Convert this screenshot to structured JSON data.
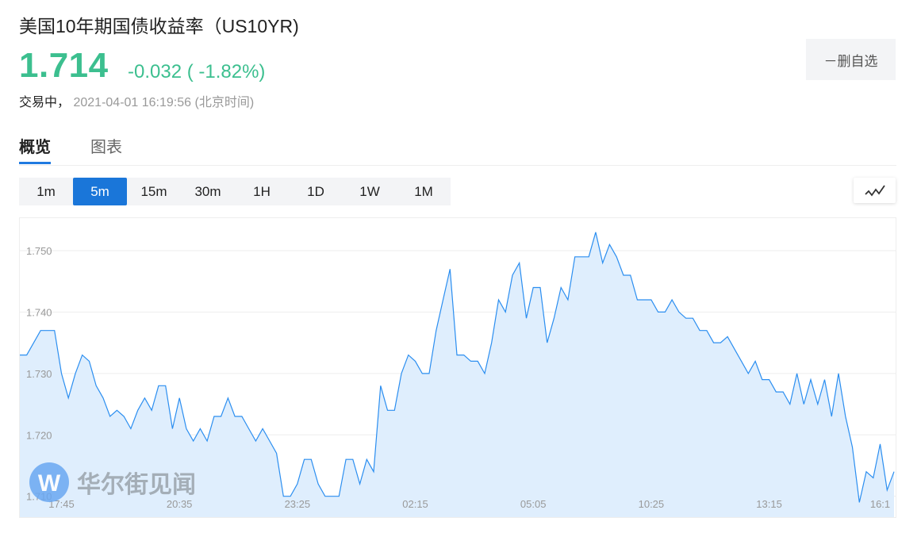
{
  "header": {
    "title": "美国10年期国债收益率（US10YR)",
    "price": "1.714",
    "change": "-0.032 ( -1.82%)",
    "status": "交易中，",
    "datetime": "2021-04-01 16:19:56",
    "timezone": "(北京时间)",
    "favorite_button": "－删自选",
    "up_down_color": "#3cbf8f"
  },
  "tabs": [
    {
      "label": "概览",
      "active": true
    },
    {
      "label": "图表",
      "active": false
    }
  ],
  "periods": [
    {
      "label": "1m",
      "active": false
    },
    {
      "label": "5m",
      "active": true
    },
    {
      "label": "15m",
      "active": false
    },
    {
      "label": "30m",
      "active": false
    },
    {
      "label": "1H",
      "active": false
    },
    {
      "label": "1D",
      "active": false
    },
    {
      "label": "1W",
      "active": false
    },
    {
      "label": "1M",
      "active": false
    }
  ],
  "chart_type_icon": "line-chart-icon",
  "watermark": {
    "logo_text": "华尔街见闻",
    "logo_letter": "W"
  },
  "chart_data": {
    "type": "area",
    "title": "",
    "xlabel": "",
    "ylabel": "",
    "line_color": "#2b8ef0",
    "fill_color": "#dfeefd",
    "grid": true,
    "ylim": [
      1.7066,
      1.7553
    ],
    "y_ticks": [
      {
        "value": 1.75,
        "label": "1.750"
      },
      {
        "value": 1.74,
        "label": "1.740"
      },
      {
        "value": 1.73,
        "label": "1.730"
      },
      {
        "value": 1.72,
        "label": "1.720"
      },
      {
        "value": 1.71,
        "label": "1.710"
      }
    ],
    "x_ticks": [
      {
        "index": 6,
        "label": "17:45"
      },
      {
        "index": 23,
        "label": "20:35"
      },
      {
        "index": 40,
        "label": "23:25"
      },
      {
        "index": 57,
        "label": "02:15"
      },
      {
        "index": 74,
        "label": "05:05"
      },
      {
        "index": 91,
        "label": "10:25"
      },
      {
        "index": 108,
        "label": "13:15"
      },
      {
        "index": 124,
        "label": "16:1"
      }
    ],
    "values": [
      1.733,
      1.733,
      1.735,
      1.737,
      1.737,
      1.737,
      1.73,
      1.726,
      1.73,
      1.733,
      1.732,
      1.728,
      1.726,
      1.723,
      1.724,
      1.723,
      1.721,
      1.724,
      1.726,
      1.724,
      1.728,
      1.728,
      1.721,
      1.726,
      1.721,
      1.719,
      1.721,
      1.719,
      1.723,
      1.723,
      1.726,
      1.723,
      1.723,
      1.721,
      1.719,
      1.721,
      1.719,
      1.717,
      1.71,
      1.71,
      1.712,
      1.716,
      1.716,
      1.712,
      1.71,
      1.71,
      1.71,
      1.716,
      1.716,
      1.712,
      1.716,
      1.714,
      1.728,
      1.724,
      1.724,
      1.73,
      1.733,
      1.732,
      1.73,
      1.73,
      1.737,
      1.742,
      1.747,
      1.733,
      1.733,
      1.732,
      1.732,
      1.73,
      1.735,
      1.742,
      1.74,
      1.746,
      1.748,
      1.739,
      1.744,
      1.744,
      1.735,
      1.739,
      1.744,
      1.742,
      1.749,
      1.749,
      1.749,
      1.753,
      1.748,
      1.751,
      1.749,
      1.746,
      1.746,
      1.742,
      1.742,
      1.742,
      1.74,
      1.74,
      1.742,
      1.74,
      1.739,
      1.739,
      1.737,
      1.737,
      1.735,
      1.735,
      1.736,
      1.734,
      1.732,
      1.73,
      1.732,
      1.729,
      1.729,
      1.727,
      1.727,
      1.725,
      1.73,
      1.725,
      1.729,
      1.725,
      1.729,
      1.723,
      1.73,
      1.723,
      1.718,
      1.709,
      1.714,
      1.713,
      1.7185,
      1.711,
      1.714
    ]
  }
}
